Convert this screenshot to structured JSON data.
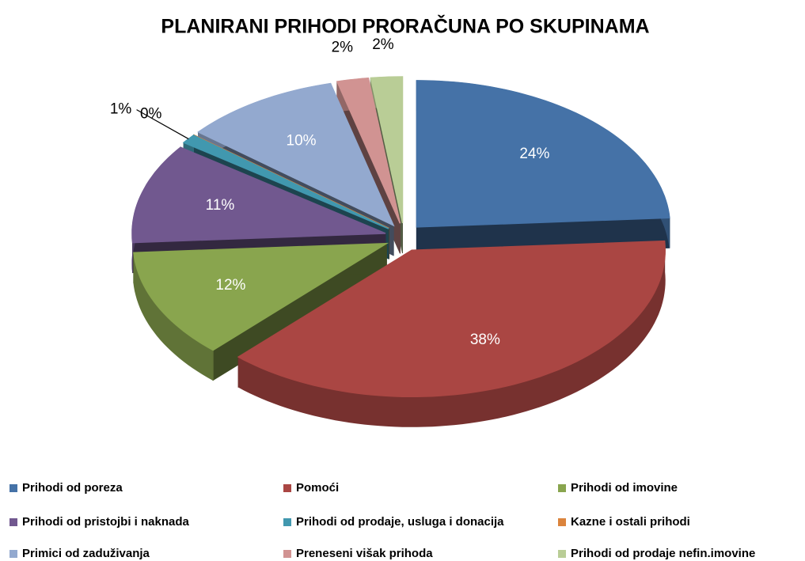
{
  "chart_data": {
    "type": "pie",
    "title": "PLANIRANI PRIHODI PRORAČUNA PO SKUPINAMA",
    "categories": [
      "Prihodi od poreza",
      "Pomoći",
      "Prihodi od imovine",
      "Prihodi od pristojbi i naknada",
      "Prihodi od prodaje, usluga i donacija",
      "Kazne i ostali prihodi",
      "Primici od zaduživanja",
      "Preneseni višak prihoda",
      "Prihodi od prodaje nefin.imovine"
    ],
    "values": [
      24,
      38,
      12,
      11,
      1,
      0,
      10,
      2,
      2
    ],
    "value_labels": [
      "24%",
      "38%",
      "12%",
      "11%",
      "1%",
      "0%",
      "10%",
      "2%",
      "2%"
    ],
    "colors": [
      "#4572A7",
      "#AA4643",
      "#89A54E",
      "#71588F",
      "#4198AF",
      "#DB843D",
      "#93A9CF",
      "#D19392",
      "#B9CD96"
    ],
    "legend": "bottom"
  }
}
